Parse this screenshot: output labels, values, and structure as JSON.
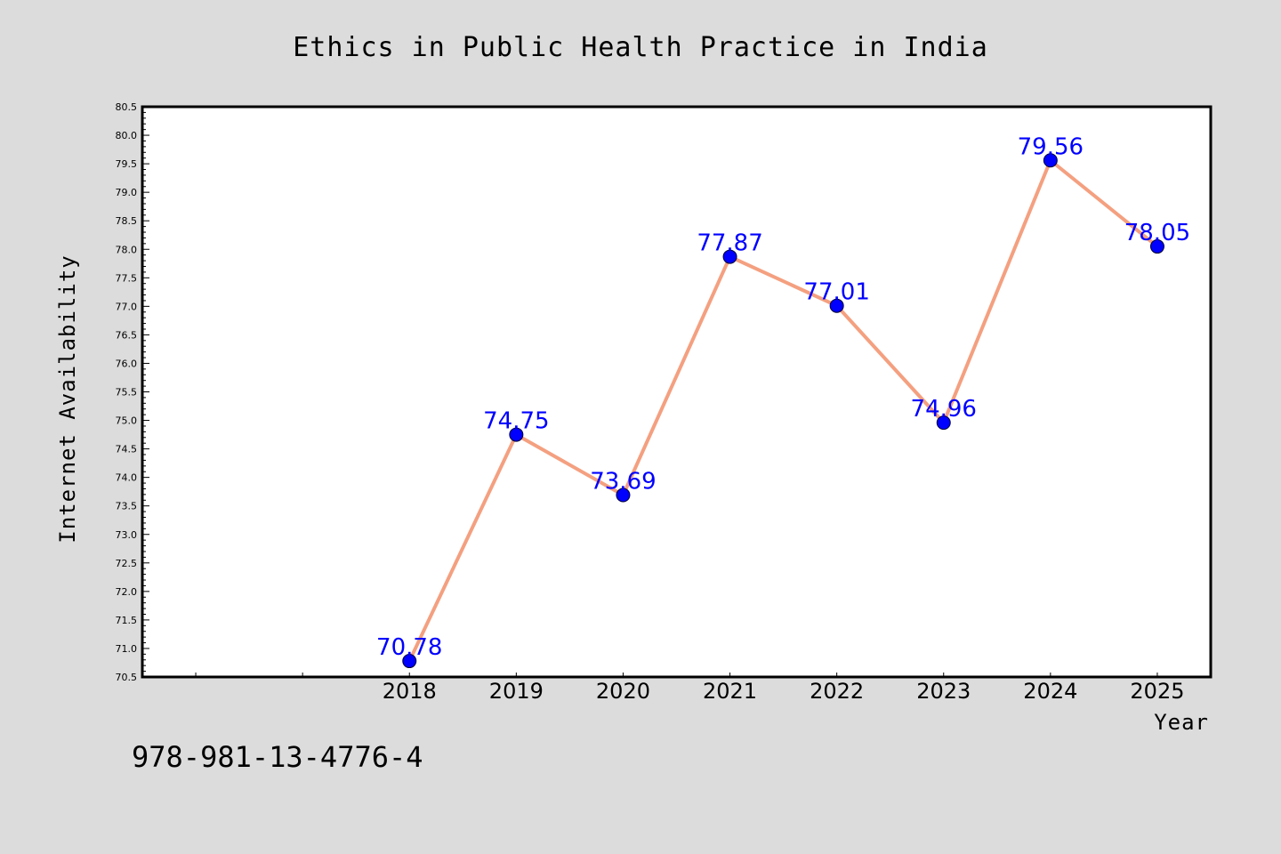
{
  "colors": {
    "background": "#dcdcdc",
    "plot_background": "#ffffff",
    "line": "#f4a080",
    "marker": "#0000ff",
    "data_label": "#0000ff"
  },
  "footnote": "978-981-13-4776-4",
  "chart_data": {
    "type": "line",
    "title": "Ethics in Public Health Practice in India",
    "xlabel": "Year",
    "ylabel": "Internet Availability",
    "x": [
      "2018",
      "2019",
      "2020",
      "2021",
      "2022",
      "2023",
      "2024",
      "2025"
    ],
    "series": [
      {
        "values": [
          70.78,
          74.75,
          73.69,
          77.87,
          77.01,
          74.96,
          79.56,
          78.05
        ],
        "labels": [
          "70.78",
          "74.75",
          "73.69",
          "77.87",
          "77.01",
          "74.96",
          "79.56",
          "78.05"
        ]
      }
    ],
    "xlim": [
      2015.5,
      2025.5
    ],
    "ylim": [
      70.5,
      80.5
    ],
    "yticks": [
      "70.5",
      "71.0",
      "71.5",
      "72.0",
      "72.5",
      "73.0",
      "73.5",
      "74.0",
      "74.5",
      "75.0",
      "75.5",
      "76.0",
      "76.5",
      "77.0",
      "77.5",
      "78.0",
      "78.5",
      "79.0",
      "79.5",
      "80.0",
      "80.5"
    ],
    "grid": false,
    "legend": "none"
  }
}
